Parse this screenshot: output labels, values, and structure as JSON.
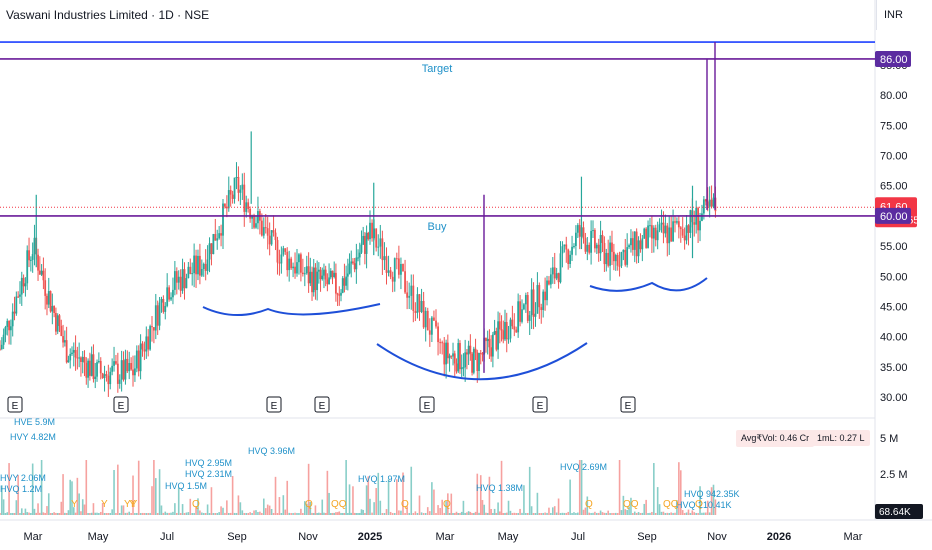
{
  "header": {
    "symbol_title": "Vaswani Industries Limited · 1D · NSE",
    "currency": "INR"
  },
  "volume_info": {
    "avg_vol": "Avg₹Vol: 0.46 Cr",
    "one_ml": "1mL: 0.27 L"
  },
  "colors": {
    "up": "#26a69a",
    "down": "#ef5350",
    "horizontal_line": "#1e40ff",
    "level_line": "#6a1b9a",
    "pattern_curve": "#1e4fd8",
    "price_badge": "#f23645",
    "level_badge": "#5b2ca0",
    "label_text": "#1e90c8",
    "earnings_q": "#f5a623"
  },
  "chart_data": {
    "type": "candlestick",
    "price_axis": {
      "ticks": [
        "30.00",
        "35.00",
        "40.00",
        "45.00",
        "50.00",
        "55.00",
        "60.00",
        "65.00",
        "70.00",
        "75.00",
        "80.00",
        "85.00"
      ],
      "range": [
        28.5,
        89
      ]
    },
    "volume_axis": {
      "ticks": [
        "2.5 M",
        "5 M"
      ],
      "current_volume": "68.64K"
    },
    "time_axis": {
      "ticks": [
        "Mar",
        "May",
        "Jul",
        "Sep",
        "Nov",
        "2025",
        "Mar",
        "May",
        "Jul",
        "Sep",
        "Nov",
        "2026",
        "Mar"
      ]
    },
    "last_price": {
      "value": 61.6,
      "label": "61.60",
      "countdown": "02:46:55"
    },
    "levels": [
      {
        "value": 86.0,
        "label": "86.00",
        "annotation": "Target"
      },
      {
        "value": 60.0,
        "label": "60.00",
        "annotation": "Buy"
      }
    ],
    "top_line_value": 88.8,
    "earnings_markers": [
      {
        "label": "E",
        "date": "2024-03"
      },
      {
        "label": "E",
        "date": "2024-05"
      },
      {
        "label": "E",
        "date": "2024-08"
      },
      {
        "label": "E",
        "date": "2024-10"
      },
      {
        "label": "E",
        "date": "2025-01"
      },
      {
        "label": "E",
        "date": "2025-05"
      },
      {
        "label": "E",
        "date": "2025-08"
      }
    ],
    "volume_annotations": [
      {
        "label": "HVE 5.9M",
        "date": "2024-03"
      },
      {
        "label": "HVY 4.82M",
        "date": "2024-02"
      },
      {
        "label": "HVY 2.06M",
        "date": "2024-02"
      },
      {
        "label": "HVQ 1.2M",
        "date": "2024-02"
      },
      {
        "label": "HVQ 2.95M",
        "date": "2024-07"
      },
      {
        "label": "HVQ 2.31M",
        "date": "2024-07"
      },
      {
        "label": "HVQ 1.5M",
        "date": "2024-07"
      },
      {
        "label": "HVQ 3.96M",
        "date": "2024-08"
      },
      {
        "label": "HVQ 1.97M",
        "date": "2024-12"
      },
      {
        "label": "HVQ 1.38M",
        "date": "2025-04"
      },
      {
        "label": "HVQ 2.69M",
        "date": "2025-07"
      },
      {
        "label": "HVQ 942.35K",
        "date": "2025-10"
      },
      {
        "label": "HVQ 210.41K",
        "date": "2025-10"
      }
    ],
    "volume_letters": [
      "Y",
      "Y",
      "Y",
      "YY",
      "Q",
      "Q",
      "QQ",
      "Q",
      "Q",
      "Q",
      "QQ",
      "QQ",
      "Q"
    ],
    "patterns": [
      {
        "name": "cup-and-handle-1",
        "type": "double-arc"
      },
      {
        "name": "cup",
        "type": "arc"
      },
      {
        "name": "cup-and-handle-2",
        "type": "double-arc"
      }
    ],
    "price_path_approx": [
      {
        "date": "2024-02",
        "close": 38
      },
      {
        "date": "2024-03",
        "close": 55
      },
      {
        "date": "2024-04",
        "close": 38
      },
      {
        "date": "2024-05",
        "close": 34
      },
      {
        "date": "2024-06",
        "close": 34
      },
      {
        "date": "2024-07",
        "close": 48
      },
      {
        "date": "2024-08",
        "close": 52
      },
      {
        "date": "2024-09",
        "close": 65
      },
      {
        "date": "2024-10",
        "close": 55
      },
      {
        "date": "2024-11",
        "close": 50
      },
      {
        "date": "2024-12",
        "close": 48
      },
      {
        "date": "2025-01",
        "close": 57
      },
      {
        "date": "2025-02",
        "close": 48
      },
      {
        "date": "2025-03",
        "close": 37
      },
      {
        "date": "2025-04",
        "close": 36
      },
      {
        "date": "2025-05",
        "close": 42
      },
      {
        "date": "2025-06",
        "close": 47
      },
      {
        "date": "2025-07",
        "close": 57
      },
      {
        "date": "2025-08",
        "close": 53
      },
      {
        "date": "2025-09",
        "close": 56
      },
      {
        "date": "2025-10",
        "close": 58
      },
      {
        "date": "2025-11",
        "close": 61.6
      }
    ]
  }
}
